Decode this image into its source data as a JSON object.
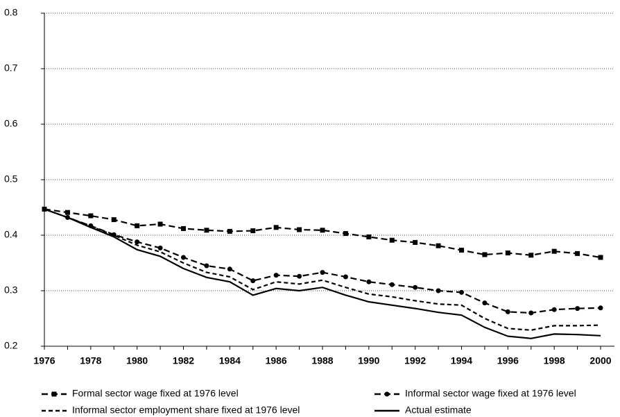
{
  "chart_data": {
    "type": "line",
    "x": [
      1976,
      1977,
      1978,
      1979,
      1980,
      1981,
      1982,
      1983,
      1984,
      1985,
      1986,
      1987,
      1988,
      1989,
      1990,
      1991,
      1992,
      1993,
      1994,
      1995,
      1996,
      1997,
      1998,
      1999,
      2000
    ],
    "xlim": [
      1976,
      2000
    ],
    "xticks": [
      1976,
      1978,
      1980,
      1982,
      1984,
      1986,
      1988,
      1990,
      1992,
      1994,
      1996,
      1998,
      2000
    ],
    "ylim": [
      0.2,
      0.8
    ],
    "yticks": [
      0.2,
      0.3,
      0.4,
      0.5,
      0.6,
      0.7,
      0.8
    ],
    "grid": true,
    "legend": "bottom",
    "series": [
      {
        "name": "Formal sector wage fixed at 1976 level",
        "color": "#000000",
        "dash": "long",
        "marker": "square",
        "values": [
          0.447,
          0.441,
          0.435,
          0.428,
          0.417,
          0.42,
          0.412,
          0.409,
          0.407,
          0.408,
          0.414,
          0.41,
          0.409,
          0.403,
          0.397,
          0.391,
          0.387,
          0.381,
          0.373,
          0.365,
          0.368,
          0.364,
          0.371,
          0.367,
          0.36
        ]
      },
      {
        "name": "Informal sector wage fixed at 1976 level",
        "color": "#000000",
        "dash": "long",
        "marker": "circle",
        "values": [
          0.447,
          0.432,
          0.417,
          0.401,
          0.388,
          0.377,
          0.36,
          0.345,
          0.339,
          0.318,
          0.328,
          0.326,
          0.333,
          0.325,
          0.316,
          0.311,
          0.306,
          0.3,
          0.297,
          0.278,
          0.262,
          0.26,
          0.266,
          0.268,
          0.269
        ]
      },
      {
        "name": "Informal sector employment share fixed at 1976 level",
        "color": "#000000",
        "dash": "short",
        "marker": "none",
        "values": [
          0.447,
          0.432,
          0.416,
          0.4,
          0.382,
          0.37,
          0.35,
          0.333,
          0.325,
          0.302,
          0.316,
          0.312,
          0.319,
          0.306,
          0.294,
          0.289,
          0.282,
          0.276,
          0.274,
          0.25,
          0.232,
          0.229,
          0.237,
          0.237,
          0.238
        ]
      },
      {
        "name": "Actual estimate",
        "color": "#000000",
        "dash": "solid",
        "marker": "none",
        "values": [
          0.447,
          0.432,
          0.414,
          0.397,
          0.374,
          0.362,
          0.34,
          0.324,
          0.316,
          0.292,
          0.304,
          0.3,
          0.306,
          0.292,
          0.28,
          0.274,
          0.268,
          0.261,
          0.256,
          0.234,
          0.218,
          0.214,
          0.222,
          0.221,
          0.219
        ]
      }
    ]
  }
}
